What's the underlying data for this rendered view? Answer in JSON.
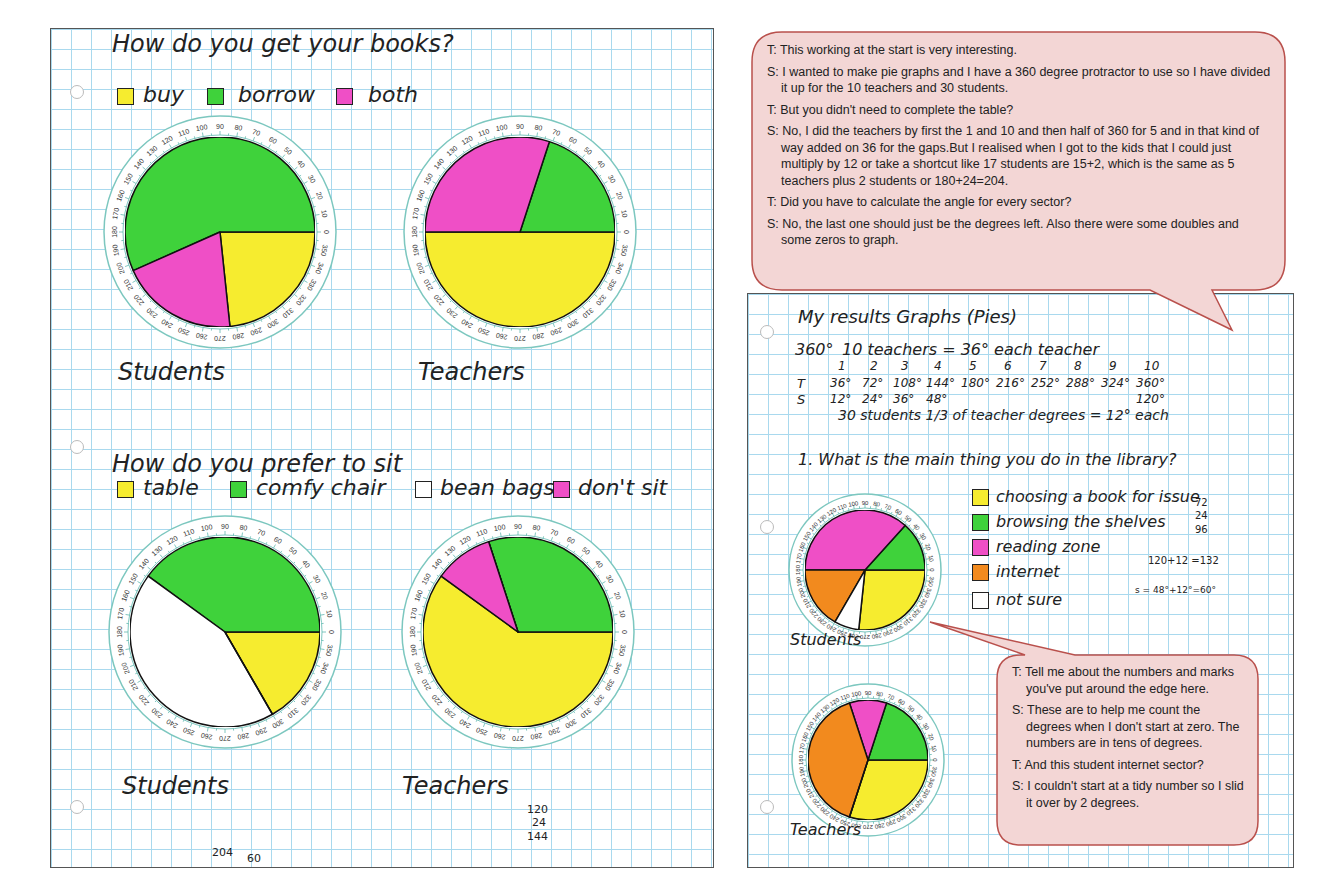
{
  "chart_data": [
    {
      "type": "pie",
      "title": "Students",
      "categories": [
        "buy",
        "borrow",
        "both"
      ],
      "values": [
        84,
        204,
        72
      ],
      "colors": [
        "#f6ec2f",
        "#3fd23b",
        "#ef4fc6"
      ]
    },
    {
      "type": "pie",
      "title": "Teachers",
      "categories": [
        "buy",
        "borrow",
        "both"
      ],
      "values": [
        180,
        72,
        108
      ],
      "colors": [
        "#f6ec2f",
        "#3fd23b",
        "#ef4fc6"
      ]
    },
    {
      "type": "pie",
      "title": "Students",
      "categories": [
        "table",
        "comfy chair",
        "bean bags",
        "don't sit"
      ],
      "values": [
        60,
        144,
        156,
        0
      ],
      "colors": [
        "#f6ec2f",
        "#3fd23b",
        "#ffffff",
        "#ef4fc6"
      ]
    },
    {
      "type": "pie",
      "title": "Teachers",
      "categories": [
        "table",
        "comfy chair",
        "bean bags",
        "don't sit"
      ],
      "values": [
        216,
        108,
        0,
        36
      ],
      "colors": [
        "#f6ec2f",
        "#3fd23b",
        "#ffffff",
        "#ef4fc6"
      ]
    },
    {
      "type": "pie",
      "title": "Students",
      "categories": [
        "choosing a book for issue",
        "browsing the shelves",
        "reading zone",
        "internet",
        "not sure"
      ],
      "values": [
        96,
        48,
        132,
        60,
        24
      ],
      "colors": [
        "#f6ec2f",
        "#3fd23b",
        "#ef4fc6",
        "#f28a1e",
        "#ffffff"
      ]
    },
    {
      "type": "pie",
      "title": "Teachers",
      "categories": [
        "choosing a book for issue",
        "browsing the shelves",
        "reading zone",
        "internet",
        "not sure"
      ],
      "values": [
        108,
        72,
        36,
        144,
        0
      ],
      "colors": [
        "#f6ec2f",
        "#3fd23b",
        "#ef4fc6",
        "#f28a1e",
        "#ffffff"
      ]
    }
  ],
  "sections": [
    "How do you get your books?",
    "How do you prefer to sit",
    "1.  What is the main thing you do in the library?"
  ],
  "protractor_labels": [
    0,
    10,
    20,
    30,
    40,
    50,
    60,
    70,
    80,
    90,
    100,
    110,
    120,
    130,
    140,
    150,
    160,
    170,
    180,
    190,
    200,
    210,
    220,
    230,
    240,
    250,
    260,
    270,
    280,
    290,
    300,
    310,
    320,
    330,
    340,
    350
  ],
  "left_notes": [
    "120",
    "24",
    "144",
    "204",
    "60"
  ],
  "working": {
    "title": "My results Graphs (Pies)",
    "total": "360°",
    "teachers_line": "10 teachers = 36° each teacher",
    "counts": [
      1,
      2,
      3,
      4,
      5,
      6,
      7,
      8,
      9,
      10
    ],
    "t_label": "T",
    "t_row": [
      "36°",
      "72°",
      "108°",
      "144°",
      "180°",
      "216°",
      "252°",
      "288°",
      "324°",
      "360°"
    ],
    "s_label": "S",
    "s_row": [
      "12°",
      "24°",
      "36°",
      "48°"
    ],
    "s_total": "120°",
    "students_line": "30 students 1/3 of teacher degrees = 12° each"
  },
  "right_notes": [
    "72",
    "24",
    "96",
    "120+12 =132",
    "s = 48°+12°=60°"
  ],
  "dialogue_top": [
    "T: This working at the start is very interesting.",
    "S: I wanted to make pie graphs and I have a 360  degree protractor to use so I have divided it up for the 10 teachers and 30 students.",
    "T: But you didn't need to complete the table?",
    "S: No, I did the teachers by first the 1 and 10 and then half of 360 for 5 and in that kind of way added on 36 for the gaps.But I realised when I got to the kids that I could just multiply by 12 or take a shortcut like 17 students are 15+2,  which is the same as 5 teachers plus 2 students or 180+24=204.",
    "T: Did you have to calculate the angle for every sector?",
    "S: No, the last one should just be the degrees left. Also there were some doubles and some zeros to graph."
  ],
  "dialogue_bottom": [
    "T: Tell me about the numbers and marks you've put around the edge here.",
    "S: These are to help me count the degrees when I don't start at zero. The numbers are in tens of degrees.",
    "T: And this student internet sector?",
    "S: I couldn't start at a tidy number so I slid it over by 2 degrees."
  ]
}
